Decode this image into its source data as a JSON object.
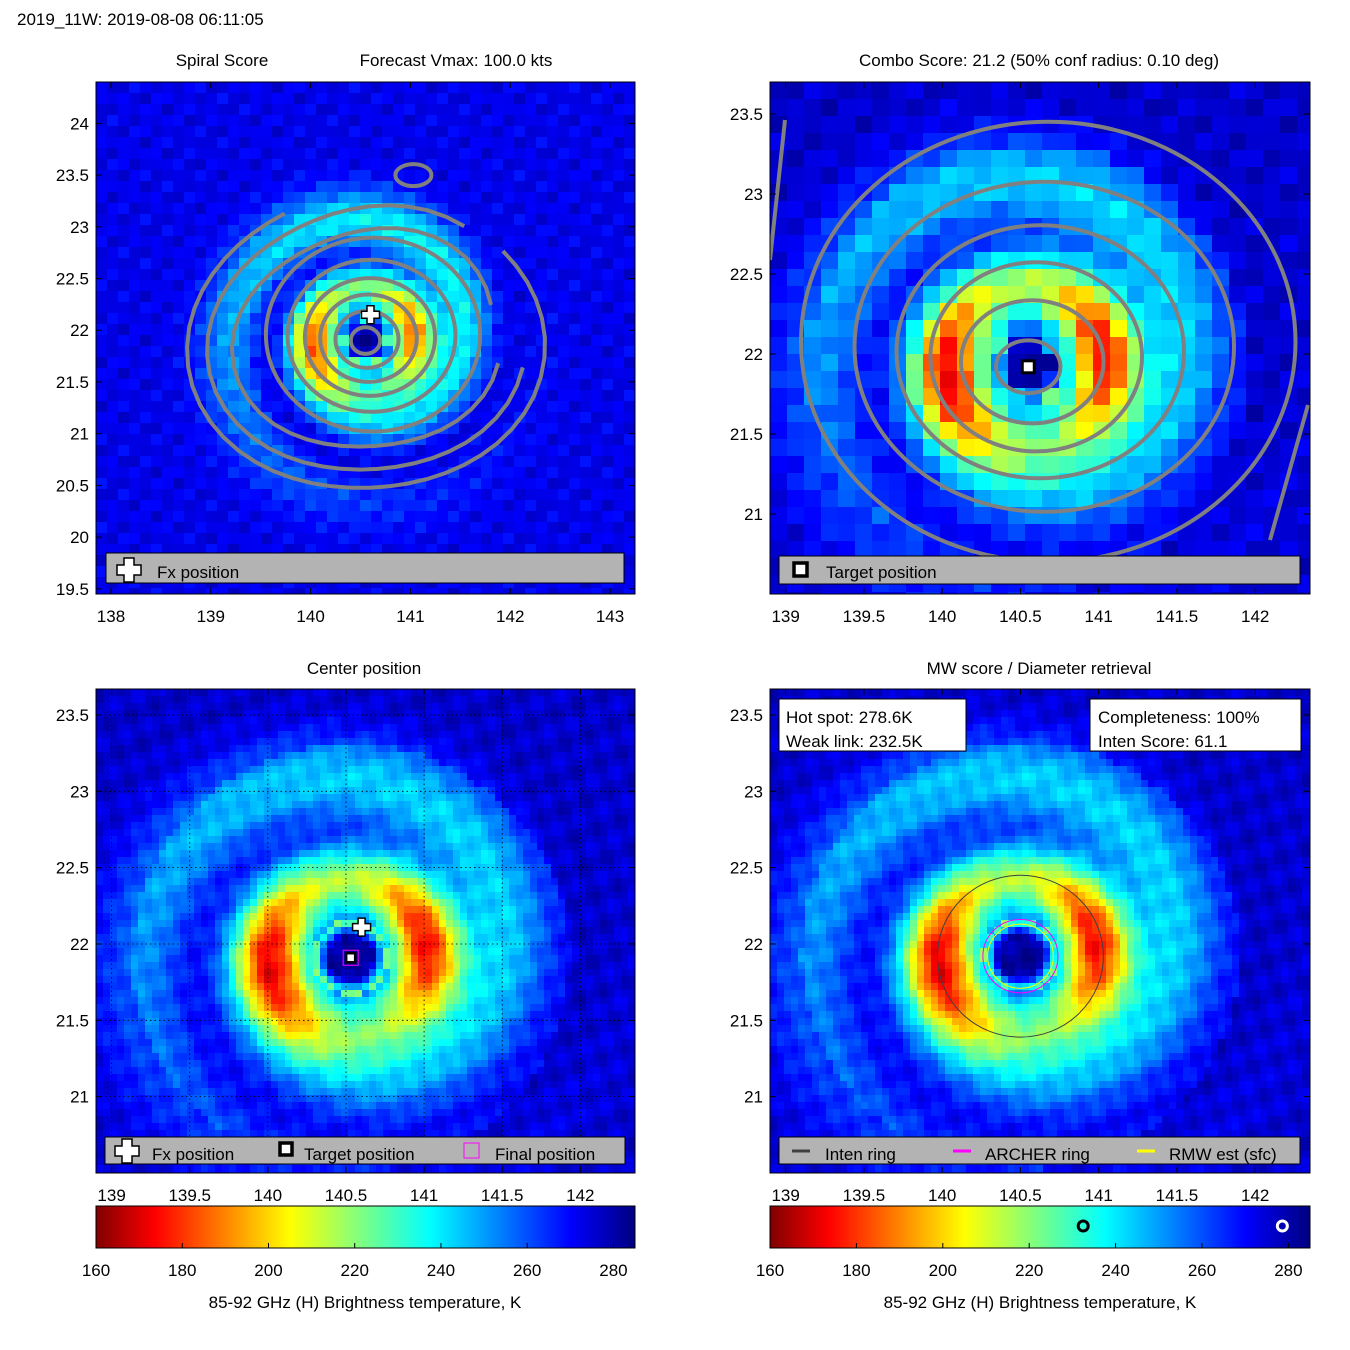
{
  "page": {
    "title": "2019_11W: 2019-08-08 06:11:05"
  },
  "panels": {
    "spiral": {
      "title_left": "Spiral Score",
      "title_right": "Forecast Vmax: 100.0 kts",
      "legend": [
        "Fx position"
      ]
    },
    "combo": {
      "title": "Combo Score: 21.2  (50% conf radius: 0.10 deg)",
      "legend": [
        "Target position"
      ]
    },
    "center": {
      "title": "Center position",
      "legend": [
        "Fx position",
        "Target position",
        "Final position"
      ]
    },
    "mw": {
      "title": "MW score / Diameter retrieval",
      "box_left": [
        "Hot spot: 278.6K",
        "Weak link: 232.5K"
      ],
      "box_right": [
        "Completeness: 100%",
        "Inten Score: 61.1"
      ],
      "legend": [
        "Inten ring",
        "ARCHER ring",
        "RMW est (sfc)"
      ]
    }
  },
  "colorbars": {
    "label": "85-92 GHz (H) Brightness temperature, K",
    "ticks": [
      160,
      180,
      200,
      220,
      240,
      260,
      280
    ],
    "range": [
      160,
      285
    ],
    "markers": [
      232.5,
      278.6
    ]
  },
  "chart_data": [
    {
      "type": "heatmap",
      "title": "Spiral Score",
      "xlim": [
        137.85,
        143.25
      ],
      "ylim": [
        19.45,
        24.4
      ],
      "xticks": [
        138,
        139,
        140,
        141,
        142,
        143
      ],
      "yticks": [
        19.5,
        20,
        20.5,
        21,
        21.5,
        22,
        22.5,
        23,
        23.5,
        24
      ],
      "markers": {
        "fx_position": [
          140.6,
          22.15
        ]
      },
      "storm_center": [
        140.55,
        21.9
      ]
    },
    {
      "type": "heatmap",
      "title": "Combo Score: 21.2  (50% conf radius: 0.10 deg)",
      "xlim": [
        138.9,
        142.35
      ],
      "ylim": [
        20.5,
        23.7
      ],
      "xticks": [
        139,
        139.5,
        140,
        140.5,
        141,
        141.5,
        142
      ],
      "yticks": [
        21,
        21.5,
        22,
        22.5,
        23,
        23.5
      ],
      "markers": {
        "target_position": [
          140.55,
          21.92
        ]
      }
    },
    {
      "type": "heatmap",
      "title": "Center position",
      "xlim": [
        138.9,
        142.35
      ],
      "ylim": [
        20.5,
        23.67
      ],
      "xticks": [
        139,
        139.5,
        140,
        140.5,
        141,
        141.5,
        142
      ],
      "yticks": [
        21,
        21.5,
        22,
        22.5,
        23,
        23.5
      ],
      "markers": {
        "fx_position": [
          140.6,
          22.11
        ],
        "target_position": [
          140.53,
          21.91
        ],
        "final_position": [
          140.53,
          21.91
        ]
      }
    },
    {
      "type": "heatmap",
      "title": "MW score / Diameter retrieval",
      "xlim": [
        138.9,
        142.35
      ],
      "ylim": [
        20.5,
        23.67
      ],
      "xticks": [
        139,
        139.5,
        140,
        140.5,
        141,
        141.5,
        142
      ],
      "yticks": [
        21,
        21.5,
        22,
        22.5,
        23,
        23.5
      ],
      "rings": {
        "center": [
          140.5,
          21.92
        ],
        "inten_ring_radius_deg": 0.53,
        "archer_ring_radius_deg": 0.24,
        "rmw_ring_radius_deg": 0.21
      }
    }
  ]
}
